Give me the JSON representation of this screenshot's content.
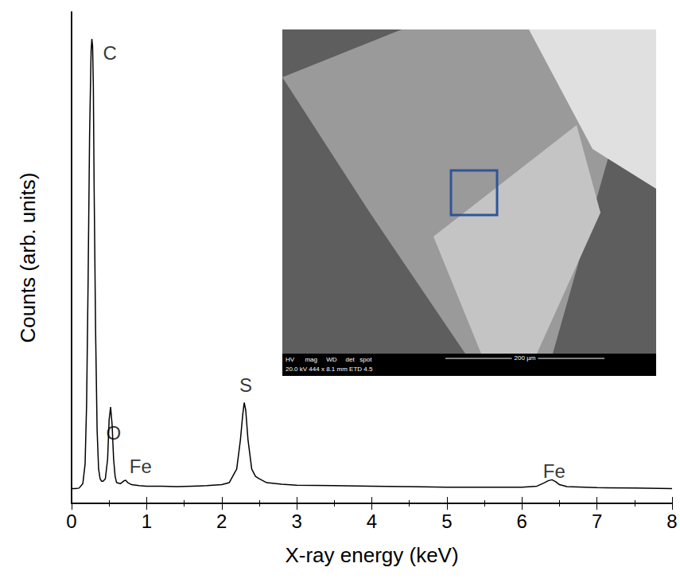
{
  "chart_data": {
    "type": "line",
    "x_label": "X-ray energy (keV)",
    "y_label": "Counts (arb. units)",
    "color": "#000000",
    "x": [
      0,
      0.05,
      0.1,
      0.15,
      0.18,
      0.2,
      0.22,
      0.24,
      0.26,
      0.27,
      0.28,
      0.29,
      0.3,
      0.32,
      0.34,
      0.36,
      0.38,
      0.4,
      0.42,
      0.45,
      0.48,
      0.5,
      0.52,
      0.54,
      0.56,
      0.58,
      0.6,
      0.65,
      0.7,
      0.72,
      0.75,
      0.8,
      0.9,
      1.0,
      1.2,
      1.4,
      1.6,
      1.8,
      2.0,
      2.1,
      2.2,
      2.25,
      2.28,
      2.3,
      2.32,
      2.35,
      2.4,
      2.45,
      2.5,
      2.6,
      2.8,
      3.0,
      3.5,
      4.0,
      4.5,
      5.0,
      5.5,
      6.0,
      6.2,
      6.3,
      6.35,
      6.4,
      6.45,
      6.5,
      6.6,
      7.0,
      7.5,
      8.0
    ],
    "values": [
      3.0,
      3.0,
      3.1,
      4,
      8,
      20,
      45,
      75,
      92,
      94.5,
      93,
      85,
      65,
      35,
      15,
      7,
      5,
      4.5,
      4.5,
      5,
      9,
      17,
      19.6,
      16,
      9,
      5.5,
      4.2,
      4,
      4.6,
      4.7,
      4.2,
      3.8,
      3.6,
      3.5,
      3.5,
      3.4,
      3.5,
      3.6,
      3.8,
      4.2,
      7,
      13,
      18,
      20.5,
      19,
      13,
      7,
      5.5,
      5,
      4.2,
      3.9,
      3.7,
      3.6,
      3.5,
      3.4,
      3.3,
      3.3,
      3.3,
      3.5,
      4.2,
      4.6,
      4.8,
      4.4,
      3.8,
      3.4,
      3.2,
      3.1,
      3.0
    ],
    "xlim": [
      0,
      8
    ],
    "xticks": [
      0,
      1,
      2,
      3,
      4,
      5,
      6,
      7,
      8
    ],
    "ylim": [
      0,
      100
    ],
    "tick_labels": "x",
    "grid": false,
    "annotations": [
      {
        "text": "C",
        "x": 0.51,
        "y": 91.6
      },
      {
        "text": "O",
        "x": 0.56,
        "y": 14.4
      },
      {
        "text": "Fe",
        "x": 0.92,
        "y": 7.6
      },
      {
        "text": "S",
        "x": 2.32,
        "y": 24
      },
      {
        "text": "Fe",
        "x": 6.43,
        "y": 6.5
      }
    ],
    "inset": {
      "header": "HV      mag     WD     det   spot",
      "info": "20.0 kV 444 x 8.1 mm ETD 4.5",
      "scale_bar": "200 µm"
    }
  }
}
